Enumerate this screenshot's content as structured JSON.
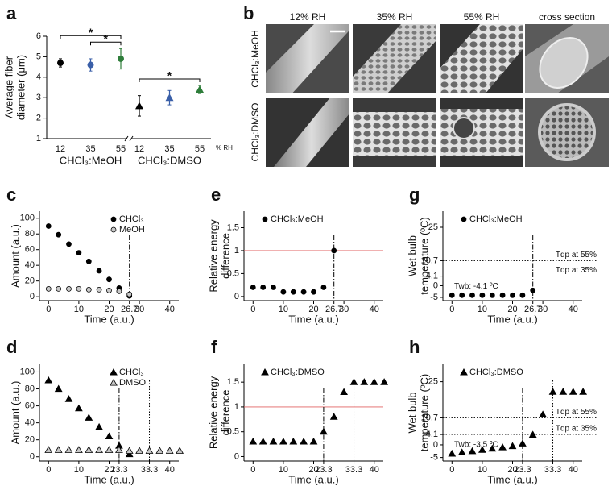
{
  "image_panel": {
    "panel": "b",
    "columns": [
      "12% RH",
      "35% RH",
      "55% RH",
      "cross section"
    ],
    "rows": [
      "CHCl₃:MeOH",
      "CHCl₃:DMSO"
    ]
  },
  "chart_data": [
    {
      "type": "errorbar",
      "panel": "a",
      "ylabel": [
        "Average fiber",
        "diameter (μm)"
      ],
      "x_unit": "% RH",
      "categories": [
        "12",
        "35",
        "55",
        "12",
        "35",
        "55"
      ],
      "groups": [
        "CHCl₃:MeOH",
        "CHCl₃:DMSO"
      ],
      "values": [
        4.7,
        4.6,
        4.9,
        2.6,
        3.0,
        3.4
      ],
      "errors": [
        0.2,
        0.3,
        0.5,
        0.5,
        0.35,
        0.2
      ],
      "colors": [
        "#000000",
        "#3a5fa8",
        "#2e7d3a",
        "#000000",
        "#3a5fa8",
        "#2e7d3a"
      ],
      "markers": [
        "circle",
        "circle",
        "circle",
        "triangle",
        "triangle",
        "triangle"
      ],
      "ylim": [
        1,
        6
      ],
      "yticks": [
        1,
        2,
        3,
        4,
        5,
        6
      ],
      "annotations": [
        {
          "text": "*",
          "from": 1,
          "to": 2
        },
        {
          "text": "*",
          "from": 0,
          "to": 2
        },
        {
          "text": "*",
          "from": 3,
          "to": 5
        }
      ]
    },
    {
      "type": "scatter",
      "panel": "c",
      "ylabel": "Amount (a.u.)",
      "xlabel": "Time (a.u.)",
      "legend": "upper right",
      "xlim": [
        -3,
        43
      ],
      "xticks": [
        0,
        10,
        20,
        26.7,
        30,
        40
      ],
      "ylim": [
        -5,
        109
      ],
      "yticks": [
        0,
        20,
        40,
        60,
        80,
        100
      ],
      "vlines": [
        {
          "x": 26.7,
          "style": "dashdot"
        }
      ],
      "series": [
        {
          "name": "CHCl₃",
          "color": "#000000",
          "marker": "circle",
          "x": [
            0,
            3.3,
            6.7,
            10,
            13.3,
            16.7,
            20,
            23.3,
            26.7
          ],
          "values": [
            90,
            79,
            67,
            56,
            45,
            33,
            22,
            11,
            1
          ]
        },
        {
          "name": "MeOH",
          "color": "#000000",
          "marker": "half-circle",
          "x": [
            0,
            3.3,
            6.7,
            10,
            13.3,
            16.7,
            20,
            23.3,
            26.7
          ],
          "values": [
            10,
            10,
            10,
            10,
            9,
            9,
            8,
            7,
            3
          ]
        }
      ]
    },
    {
      "type": "scatter",
      "panel": "d",
      "ylabel": "Amount (a.u.)",
      "xlabel": "Time (a.u.)",
      "legend": "upper right",
      "xlim": [
        -3,
        43
      ],
      "xticks": [
        0,
        10,
        20,
        23.3,
        33.3,
        40
      ],
      "ylim": [
        -5,
        109
      ],
      "yticks": [
        0,
        20,
        40,
        60,
        80,
        100
      ],
      "vlines": [
        {
          "x": 23.3,
          "style": "dashdot"
        },
        {
          "x": 33.3,
          "style": "dotted"
        }
      ],
      "series": [
        {
          "name": "CHCl₃",
          "color": "#000000",
          "marker": "triangle",
          "x": [
            0,
            3.3,
            6.7,
            10,
            13.3,
            16.7,
            20,
            23.3,
            26.7
          ],
          "values": [
            90,
            80,
            68,
            57,
            46,
            35,
            24,
            13,
            3
          ]
        },
        {
          "name": "DMSO",
          "color": "#000000",
          "marker": "half-triangle",
          "x": [
            0,
            3.3,
            6.7,
            10,
            13.3,
            16.7,
            20,
            23.3,
            26.7,
            30,
            33.3,
            36.7,
            40,
            43.3
          ],
          "values": [
            8,
            8,
            8,
            8,
            8,
            8,
            8,
            8,
            7,
            7,
            7,
            7,
            7,
            7
          ]
        }
      ]
    },
    {
      "type": "scatter",
      "panel": "e",
      "ylabel": [
        "Relative energy",
        "difference"
      ],
      "xlabel": "Time (a.u.)",
      "legend": "upper left",
      "xlim": [
        -3,
        43
      ],
      "xticks": [
        0,
        10,
        20,
        26.7,
        30,
        40
      ],
      "ylim": [
        -0.09,
        1.86
      ],
      "yticks": [
        0,
        0.5,
        1,
        1.5
      ],
      "vlines": [
        {
          "x": 26.7,
          "style": "dashdot"
        }
      ],
      "hlines": [
        {
          "y": 1,
          "color": "#e06060",
          "style": "solid"
        }
      ],
      "series": [
        {
          "name": "CHCl₃:MeOH",
          "color": "#000000",
          "marker": "circle",
          "x": [
            0,
            3.3,
            6.7,
            10,
            13.3,
            16.7,
            20,
            23.3,
            26.7
          ],
          "values": [
            0.2,
            0.2,
            0.2,
            0.1,
            0.1,
            0.1,
            0.1,
            0.2,
            1.0
          ]
        }
      ]
    },
    {
      "type": "scatter",
      "panel": "f",
      "ylabel": [
        "Relative energy",
        "difference"
      ],
      "xlabel": "Time (a.u.)",
      "legend": "upper left",
      "xlim": [
        -3,
        43
      ],
      "xticks": [
        0,
        10,
        20,
        23.3,
        33.3,
        40
      ],
      "ylim": [
        -0.09,
        1.86
      ],
      "yticks": [
        0,
        0.5,
        1,
        1.5
      ],
      "vlines": [
        {
          "x": 23.3,
          "style": "dashdot"
        },
        {
          "x": 33.3,
          "style": "dotted"
        }
      ],
      "hlines": [
        {
          "y": 1,
          "color": "#e06060",
          "style": "solid"
        }
      ],
      "series": [
        {
          "name": "CHCl₃:DMSO",
          "color": "#000000",
          "marker": "triangle",
          "x": [
            0,
            3.3,
            6.7,
            10,
            13.3,
            16.7,
            20,
            23.3,
            26.7,
            30,
            33.3,
            36.7,
            40,
            43.3
          ],
          "values": [
            0.3,
            0.3,
            0.3,
            0.3,
            0.3,
            0.3,
            0.3,
            0.5,
            0.8,
            1.3,
            1.5,
            1.5,
            1.5,
            1.5
          ]
        }
      ]
    },
    {
      "type": "scatter",
      "panel": "g",
      "ylabel": [
        "Wet bulb",
        "temperature (ºC)"
      ],
      "xlabel": "Time (a.u.)",
      "legend": "upper left",
      "xlim": [
        -3,
        43
      ],
      "xticks": [
        0,
        10,
        20,
        26.7,
        30,
        40
      ],
      "ylim": [
        -6.4,
        31.9
      ],
      "yticks": [
        -5,
        0,
        4.1,
        10.7,
        25
      ],
      "vlines": [
        {
          "x": 26.7,
          "style": "dashdot"
        }
      ],
      "hlines": [
        {
          "y": 10.7,
          "style": "dotted",
          "color": "#000000",
          "label": "Tdp at 55%"
        },
        {
          "y": 4.1,
          "style": "dotted",
          "color": "#000000",
          "label": "Tdp at 35%"
        }
      ],
      "note": "Twb: -4.1 ºC",
      "series": [
        {
          "name": "CHCl₃:MeOH",
          "color": "#000000",
          "marker": "circle",
          "x": [
            0,
            3.3,
            6.7,
            10,
            13.3,
            16.7,
            20,
            23.3,
            26.7
          ],
          "values": [
            -4.1,
            -4.1,
            -4.1,
            -4.1,
            -4.1,
            -4.1,
            -4.1,
            -4.1,
            -2
          ]
        }
      ]
    },
    {
      "type": "scatter",
      "panel": "h",
      "ylabel": [
        "Wet bulb",
        "temperature (ºC)"
      ],
      "xlabel": "Time (a.u.)",
      "legend": "upper left",
      "xlim": [
        -3,
        43
      ],
      "xticks": [
        0,
        10,
        20,
        23.3,
        33.3,
        40
      ],
      "ylim": [
        -6.4,
        31.9
      ],
      "yticks": [
        -5,
        0,
        4.1,
        10.7,
        25
      ],
      "vlines": [
        {
          "x": 23.3,
          "style": "dashdot"
        },
        {
          "x": 33.3,
          "style": "dotted"
        }
      ],
      "hlines": [
        {
          "y": 10.7,
          "style": "dotted",
          "color": "#000000",
          "label": "Tdp at 55%"
        },
        {
          "y": 4.1,
          "style": "dotted",
          "color": "#000000",
          "label": "Tdp at 35%"
        }
      ],
      "note": "Twb: -3.5 ºC",
      "series": [
        {
          "name": "CHCl₃:DMSO",
          "color": "#000000",
          "marker": "triangle",
          "x": [
            0,
            3.3,
            6.7,
            10,
            13.3,
            16.7,
            20,
            23.3,
            26.7,
            30,
            33.3,
            36.7,
            40,
            43.3
          ],
          "values": [
            -3.5,
            -3,
            -2.5,
            -2,
            -1.5,
            -1,
            -0.5,
            0.5,
            4,
            12,
            21,
            21,
            21,
            21
          ]
        }
      ]
    }
  ]
}
